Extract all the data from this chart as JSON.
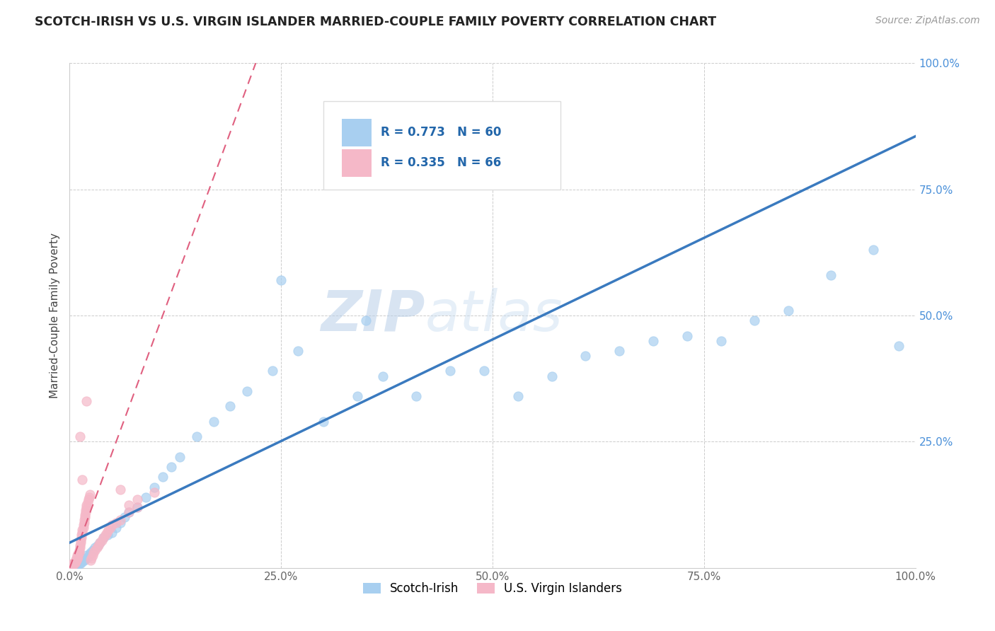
{
  "title": "SCOTCH-IRISH VS U.S. VIRGIN ISLANDER MARRIED-COUPLE FAMILY POVERTY CORRELATION CHART",
  "source": "Source: ZipAtlas.com",
  "ylabel": "Married-Couple Family Poverty",
  "xlim": [
    0,
    1.0
  ],
  "ylim": [
    0,
    1.0
  ],
  "xticks": [
    0.0,
    0.25,
    0.5,
    0.75,
    1.0
  ],
  "xticklabels": [
    "0.0%",
    "25.0%",
    "50.0%",
    "75.0%",
    "100.0%"
  ],
  "yticks": [
    0.25,
    0.5,
    0.75,
    1.0
  ],
  "yticklabels": [
    "25.0%",
    "50.0%",
    "75.0%",
    "100.0%"
  ],
  "blue_R": 0.773,
  "blue_N": 60,
  "pink_R": 0.335,
  "pink_N": 66,
  "blue_color": "#a8cff0",
  "pink_color": "#f5b8c8",
  "blue_line_color": "#3a7abf",
  "pink_line_color": "#e06080",
  "watermark_zip": "ZIP",
  "watermark_atlas": "atlas",
  "legend_label_blue": "Scotch-Irish",
  "legend_label_pink": "U.S. Virgin Islanders",
  "blue_line_x0": 0.0,
  "blue_line_y0": 0.05,
  "blue_line_x1": 1.0,
  "blue_line_y1": 0.855,
  "pink_line_x0": 0.0,
  "pink_line_y0": 0.0,
  "pink_line_x1": 0.22,
  "pink_line_y1": 1.0,
  "blue_scatter_x": [
    0.005,
    0.007,
    0.009,
    0.01,
    0.011,
    0.012,
    0.013,
    0.014,
    0.015,
    0.016,
    0.017,
    0.018,
    0.019,
    0.02,
    0.022,
    0.024,
    0.025,
    0.027,
    0.03,
    0.033,
    0.036,
    0.04,
    0.045,
    0.05,
    0.055,
    0.06,
    0.065,
    0.07,
    0.08,
    0.09,
    0.1,
    0.11,
    0.12,
    0.13,
    0.15,
    0.17,
    0.19,
    0.21,
    0.24,
    0.27,
    0.3,
    0.34,
    0.37,
    0.41,
    0.45,
    0.49,
    0.53,
    0.57,
    0.61,
    0.65,
    0.69,
    0.73,
    0.77,
    0.81,
    0.85,
    0.9,
    0.95,
    0.98,
    0.25,
    0.35
  ],
  "blue_scatter_y": [
    0.005,
    0.008,
    0.006,
    0.01,
    0.008,
    0.012,
    0.01,
    0.015,
    0.012,
    0.018,
    0.015,
    0.02,
    0.018,
    0.025,
    0.022,
    0.028,
    0.03,
    0.035,
    0.04,
    0.045,
    0.05,
    0.06,
    0.065,
    0.07,
    0.08,
    0.09,
    0.1,
    0.11,
    0.12,
    0.14,
    0.16,
    0.18,
    0.2,
    0.22,
    0.26,
    0.29,
    0.32,
    0.35,
    0.39,
    0.43,
    0.29,
    0.34,
    0.38,
    0.34,
    0.39,
    0.39,
    0.34,
    0.38,
    0.42,
    0.43,
    0.45,
    0.46,
    0.45,
    0.49,
    0.51,
    0.58,
    0.63,
    0.44,
    0.57,
    0.49
  ],
  "pink_scatter_x": [
    0.002,
    0.003,
    0.004,
    0.005,
    0.005,
    0.006,
    0.006,
    0.007,
    0.007,
    0.008,
    0.008,
    0.008,
    0.009,
    0.009,
    0.01,
    0.01,
    0.011,
    0.011,
    0.012,
    0.012,
    0.013,
    0.013,
    0.014,
    0.014,
    0.015,
    0.015,
    0.016,
    0.016,
    0.017,
    0.017,
    0.018,
    0.018,
    0.019,
    0.019,
    0.02,
    0.02,
    0.021,
    0.022,
    0.023,
    0.024,
    0.025,
    0.026,
    0.027,
    0.028,
    0.03,
    0.032,
    0.034,
    0.036,
    0.038,
    0.04,
    0.042,
    0.044,
    0.046,
    0.048,
    0.05,
    0.055,
    0.06,
    0.07,
    0.08,
    0.1,
    0.012,
    0.015,
    0.02,
    0.06,
    0.07,
    0.08
  ],
  "pink_scatter_y": [
    0.005,
    0.008,
    0.006,
    0.01,
    0.008,
    0.012,
    0.01,
    0.015,
    0.012,
    0.018,
    0.015,
    0.02,
    0.018,
    0.025,
    0.022,
    0.028,
    0.03,
    0.035,
    0.04,
    0.045,
    0.05,
    0.055,
    0.06,
    0.065,
    0.07,
    0.075,
    0.08,
    0.085,
    0.09,
    0.095,
    0.1,
    0.105,
    0.11,
    0.115,
    0.12,
    0.125,
    0.13,
    0.135,
    0.14,
    0.145,
    0.015,
    0.02,
    0.025,
    0.03,
    0.035,
    0.04,
    0.045,
    0.05,
    0.055,
    0.06,
    0.065,
    0.07,
    0.075,
    0.08,
    0.085,
    0.09,
    0.095,
    0.11,
    0.12,
    0.15,
    0.26,
    0.175,
    0.33,
    0.155,
    0.125,
    0.135
  ]
}
